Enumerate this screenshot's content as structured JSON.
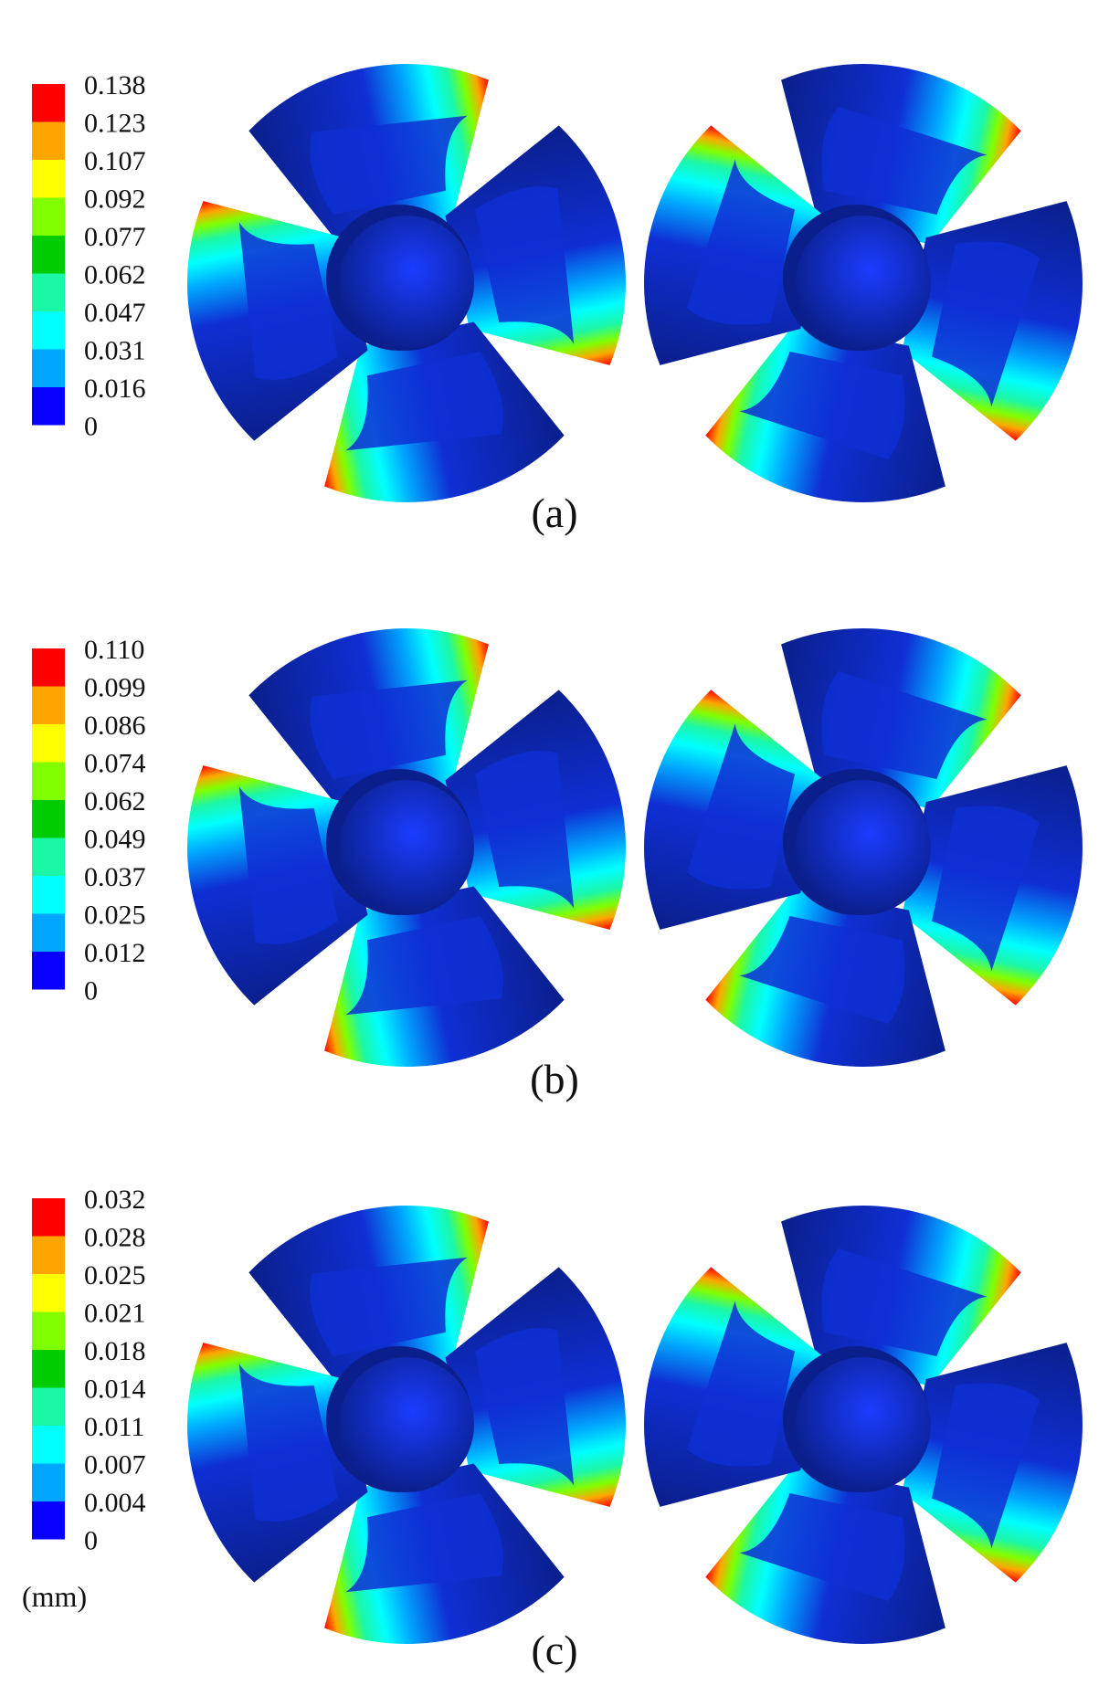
{
  "colors": {
    "scale": [
      "#0a00ff",
      "#00a6ff",
      "#00ffff",
      "#1cf7a7",
      "#00cc00",
      "#80ff00",
      "#ffff00",
      "#ffa500",
      "#ff0000"
    ],
    "blade_dark": "#0a1f8c",
    "blade": "#0f2fd4",
    "hub": "#1234cc"
  },
  "panels": [
    {
      "caption": "(a)",
      "legend_values": [
        "0.138",
        "0.123",
        "0.107",
        "0.092",
        "0.077",
        "0.062",
        "0.047",
        "0.031",
        "0.016",
        "0"
      ]
    },
    {
      "caption": "(b)",
      "legend_values": [
        "0.110",
        "0.099",
        "0.086",
        "0.074",
        "0.062",
        "0.049",
        "0.037",
        "0.025",
        "0.012",
        "0"
      ]
    },
    {
      "caption": "(c)",
      "legend_values": [
        "0.032",
        "0.028",
        "0.025",
        "0.021",
        "0.018",
        "0.014",
        "0.011",
        "0.007",
        "0.004",
        "0"
      ],
      "unit": "(mm)"
    }
  ]
}
